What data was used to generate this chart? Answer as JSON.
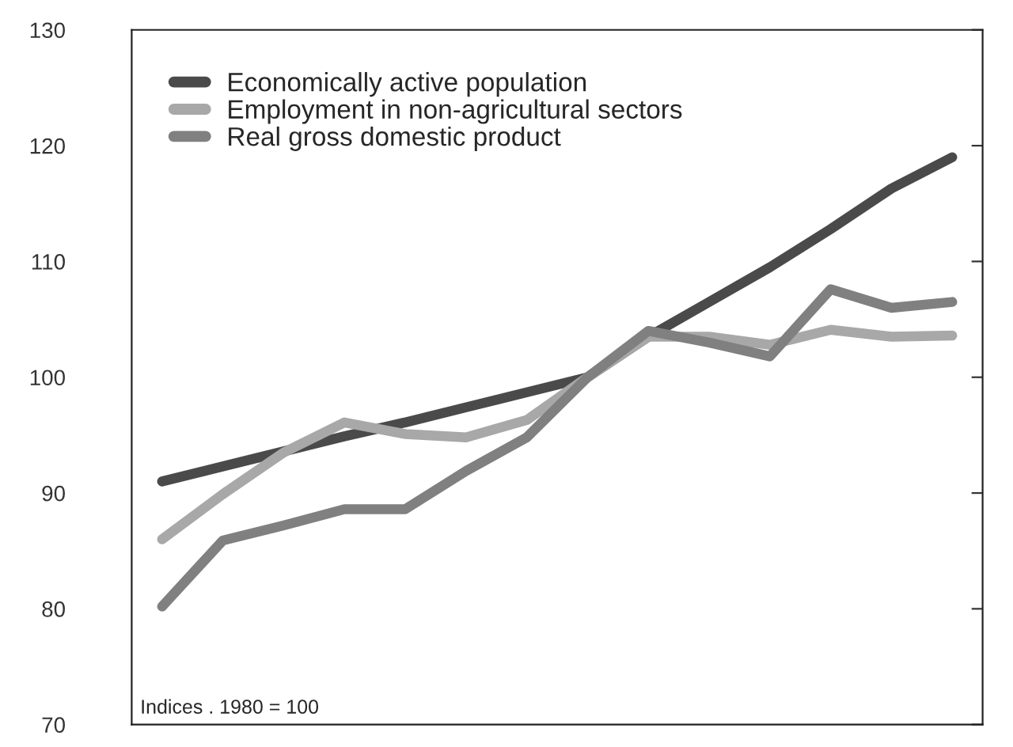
{
  "chart_data": {
    "type": "line",
    "categories": [
      null,
      null,
      null,
      null,
      null,
      null,
      null,
      null,
      null,
      null,
      null,
      null,
      null,
      null
    ],
    "series": [
      {
        "name": "Economically active population",
        "color": "#4a4a4a",
        "values": [
          91,
          92.3,
          93.6,
          94.9,
          96.1,
          97.4,
          98.7,
          100,
          103.5,
          106.5,
          109.5,
          112.8,
          116.3,
          119
        ]
      },
      {
        "name": "Employment in non-agricultural sectors",
        "color": "#a8a8a8",
        "values": [
          86,
          89.9,
          93.5,
          96.1,
          95.1,
          94.8,
          96.3,
          100,
          103.5,
          103.5,
          102.8,
          104.1,
          103.5,
          103.6
        ]
      },
      {
        "name": "Real gross domestic product",
        "color": "#808080",
        "values": [
          80.2,
          85.9,
          87.2,
          88.6,
          88.6,
          91.9,
          94.8,
          100,
          104,
          103,
          101.8,
          107.6,
          106,
          106.5
        ]
      }
    ],
    "ylim": [
      70,
      130
    ],
    "yticks": [
      70,
      80,
      90,
      100,
      110,
      120,
      130
    ],
    "annotations": [
      "Indices . 1980 = 100"
    ],
    "legend": "top left",
    "marker": "none",
    "line_style": "solid",
    "grid": false
  }
}
